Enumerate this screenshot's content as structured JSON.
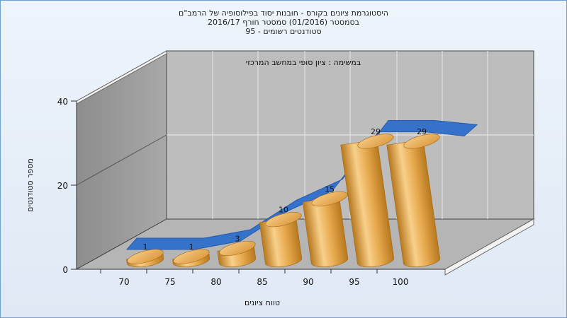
{
  "title_lines": [
    "היסטוגרמת ציונים בקורס - חובנות יסוד בפילוסופיה של הרמב\"ם",
    "בסמסטר  (01/2016)  סמסטר חורף  2016/17",
    "סטודנטים רשומים - 95"
  ],
  "chart_data": {
    "type": "bar",
    "title": "היסטוגרמת ציונים בקורס - חובנות יסוד בפילוסופיה של הרמב\"ם",
    "subtitle": "במשימה : ציון סופי במחשב המרכזי",
    "xlabel": "טווח ציונים",
    "ylabel": "מספר סטודנטים",
    "x_ticks": [
      "70",
      "75",
      "80",
      "85",
      "90",
      "95",
      "100"
    ],
    "y_ticks": [
      0,
      20,
      40
    ],
    "ylim": [
      0,
      40
    ],
    "grid": true,
    "categories": [
      "70",
      "75",
      "80",
      "85",
      "90",
      "95",
      "100"
    ],
    "series": [
      {
        "values": [
          1,
          1,
          3,
          10,
          15,
          29,
          29
        ]
      }
    ],
    "trend": [
      1,
      1,
      3,
      10,
      15,
      29,
      29
    ],
    "colors": {
      "bar": "#e1a445",
      "bar_light": "#f8d08a",
      "bar_dark": "#b7781e",
      "trend": "#2f6fcc",
      "wall": "#9a9a9a",
      "floor": "#b9b9b9"
    }
  }
}
